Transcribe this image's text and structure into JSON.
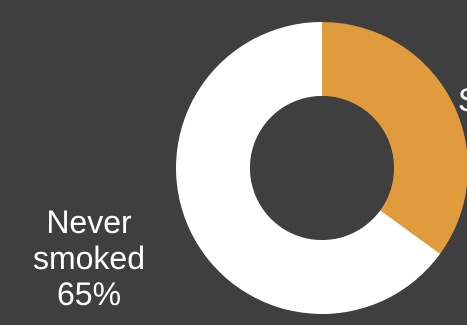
{
  "chart_data": {
    "type": "pie",
    "donut": true,
    "slices": [
      {
        "label": "Smoked",
        "value": 35,
        "color": "#e09b3d"
      },
      {
        "label": "Never smoked",
        "value": 65,
        "color": "#ffffff"
      }
    ],
    "labels": {
      "never_line1": "Never",
      "never_line2": "smoked",
      "never_value": "65%",
      "smoked_partial": "S"
    },
    "background": "#3f3f3f",
    "hole_color": "#3f3f3f"
  }
}
